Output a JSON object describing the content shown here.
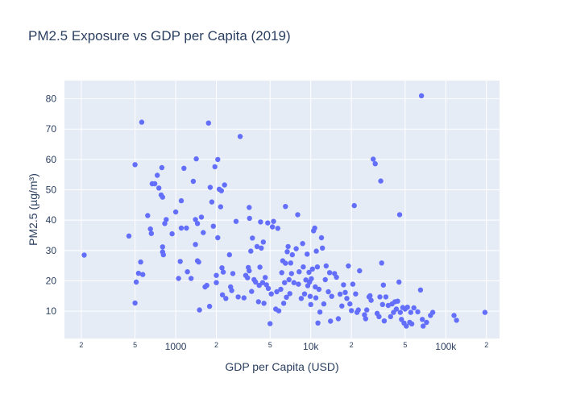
{
  "chart_data": {
    "type": "scatter",
    "title": "PM2.5 Exposure vs GDP per Capita (2019)",
    "xlabel": "GDP per Capita (USD)",
    "ylabel": "PM2.5 (µg/m³)",
    "x_scale": "log",
    "x_range": [
      150,
      250000
    ],
    "y_range": [
      1,
      86
    ],
    "x_ticks": [
      {
        "value": 200,
        "label": "2",
        "minor": true
      },
      {
        "value": 500,
        "label": "5",
        "minor": true
      },
      {
        "value": 1000,
        "label": "1000",
        "minor": false
      },
      {
        "value": 2000,
        "label": "2",
        "minor": true
      },
      {
        "value": 5000,
        "label": "5",
        "minor": true
      },
      {
        "value": 10000,
        "label": "10k",
        "minor": false
      },
      {
        "value": 20000,
        "label": "2",
        "minor": true
      },
      {
        "value": 50000,
        "label": "5",
        "minor": true
      },
      {
        "value": 100000,
        "label": "100k",
        "minor": false
      },
      {
        "value": 200000,
        "label": "2",
        "minor": true
      }
    ],
    "y_ticks": [
      10,
      20,
      30,
      40,
      50,
      60,
      70,
      80
    ],
    "grid": true,
    "marker_color": "#636efa",
    "plot_background": "#e5ecf6",
    "points": [
      [
        210,
        28.5
      ],
      [
        450,
        34.8
      ],
      [
        500,
        58.3
      ],
      [
        500,
        12.7
      ],
      [
        510,
        19.6
      ],
      [
        530,
        22.5
      ],
      [
        550,
        26.2
      ],
      [
        560,
        72.3
      ],
      [
        570,
        22.1
      ],
      [
        620,
        41.5
      ],
      [
        650,
        37.1
      ],
      [
        660,
        35.6
      ],
      [
        670,
        52.0
      ],
      [
        700,
        52.0
      ],
      [
        730,
        54.8
      ],
      [
        750,
        50.6
      ],
      [
        780,
        48.3
      ],
      [
        790,
        57.3
      ],
      [
        800,
        47.6
      ],
      [
        800,
        31.2
      ],
      [
        800,
        29.5
      ],
      [
        810,
        28.6
      ],
      [
        830,
        38.9
      ],
      [
        850,
        40.2
      ],
      [
        940,
        35.5
      ],
      [
        1000,
        42.7
      ],
      [
        1050,
        20.8
      ],
      [
        1080,
        26.4
      ],
      [
        1100,
        37.4
      ],
      [
        1100,
        46.4
      ],
      [
        1150,
        57.1
      ],
      [
        1200,
        37.4
      ],
      [
        1220,
        23.0
      ],
      [
        1300,
        20.8
      ],
      [
        1350,
        52.8
      ],
      [
        1400,
        40.2
      ],
      [
        1400,
        32.0
      ],
      [
        1420,
        60.2
      ],
      [
        1450,
        26.6
      ],
      [
        1450,
        38.9
      ],
      [
        1480,
        26.2
      ],
      [
        1500,
        10.4
      ],
      [
        1550,
        41.0
      ],
      [
        1600,
        35.9
      ],
      [
        1650,
        18.0
      ],
      [
        1700,
        18.5
      ],
      [
        1750,
        72.0
      ],
      [
        1780,
        11.6
      ],
      [
        1800,
        50.8
      ],
      [
        1850,
        46.0
      ],
      [
        1900,
        38.0
      ],
      [
        1950,
        57.6
      ],
      [
        2000,
        21.8
      ],
      [
        2000,
        19.4
      ],
      [
        2050,
        60.0
      ],
      [
        2050,
        34.2
      ],
      [
        2100,
        50.2
      ],
      [
        2150,
        44.4
      ],
      [
        2180,
        49.7
      ],
      [
        2200,
        24.3
      ],
      [
        2220,
        15.4
      ],
      [
        2250,
        22.9
      ],
      [
        2300,
        51.6
      ],
      [
        2350,
        14.2
      ],
      [
        2500,
        28.6
      ],
      [
        2550,
        18.0
      ],
      [
        2600,
        16.8
      ],
      [
        2650,
        22.4
      ],
      [
        2800,
        39.6
      ],
      [
        2900,
        14.7
      ],
      [
        3000,
        67.6
      ],
      [
        3200,
        14.4
      ],
      [
        3300,
        21.8
      ],
      [
        3400,
        21.0
      ],
      [
        3450,
        24.4
      ],
      [
        3500,
        23.3
      ],
      [
        3500,
        44.2
      ],
      [
        3520,
        40.6
      ],
      [
        3600,
        29.8
      ],
      [
        3650,
        16.5
      ],
      [
        3700,
        34.1
      ],
      [
        3800,
        20.4
      ],
      [
        3900,
        19.6
      ],
      [
        4000,
        31.3
      ],
      [
        4100,
        13.1
      ],
      [
        4150,
        18.5
      ],
      [
        4200,
        24.5
      ],
      [
        4250,
        39.4
      ],
      [
        4300,
        30.8
      ],
      [
        4400,
        19.4
      ],
      [
        4450,
        32.8
      ],
      [
        4500,
        12.6
      ],
      [
        4600,
        21.1
      ],
      [
        4700,
        18.7
      ],
      [
        4800,
        39.1
      ],
      [
        4850,
        17.5
      ],
      [
        5000,
        5.9
      ],
      [
        5100,
        15.7
      ],
      [
        5200,
        37.8
      ],
      [
        5300,
        39.6
      ],
      [
        5500,
        10.7
      ],
      [
        5600,
        16.4
      ],
      [
        5700,
        37.3
      ],
      [
        5800,
        10.1
      ],
      [
        6000,
        17.2
      ],
      [
        6100,
        22.7
      ],
      [
        6200,
        26.6
      ],
      [
        6300,
        12.6
      ],
      [
        6400,
        19.4
      ],
      [
        6500,
        25.8
      ],
      [
        6500,
        44.5
      ],
      [
        6600,
        14.6
      ],
      [
        6700,
        29.6
      ],
      [
        6800,
        31.3
      ],
      [
        6900,
        20.4
      ],
      [
        7000,
        15.8
      ],
      [
        7100,
        25.9
      ],
      [
        7200,
        22.4
      ],
      [
        7300,
        28.6
      ],
      [
        7500,
        19.4
      ],
      [
        7800,
        30.6
      ],
      [
        8000,
        41.8
      ],
      [
        8100,
        18.9
      ],
      [
        8200,
        23.0
      ],
      [
        8500,
        14.2
      ],
      [
        8700,
        32.3
      ],
      [
        8800,
        24.6
      ],
      [
        9000,
        15.7
      ],
      [
        9200,
        20.3
      ],
      [
        9400,
        28.8
      ],
      [
        9500,
        18.4
      ],
      [
        9700,
        22.8
      ],
      [
        9800,
        19.6
      ],
      [
        9900,
        14.9
      ],
      [
        10000,
        12.2
      ],
      [
        10100,
        20.7
      ],
      [
        10300,
        23.9
      ],
      [
        10500,
        36.5
      ],
      [
        10700,
        37.4
      ],
      [
        10800,
        18.0
      ],
      [
        10900,
        14.4
      ],
      [
        11000,
        29.8
      ],
      [
        11200,
        24.6
      ],
      [
        11300,
        6.1
      ],
      [
        11500,
        17.2
      ],
      [
        11700,
        9.7
      ],
      [
        12000,
        34.2
      ],
      [
        12200,
        30.8
      ],
      [
        12500,
        12.4
      ],
      [
        12800,
        20.4
      ],
      [
        13000,
        24.9
      ],
      [
        13500,
        16.4
      ],
      [
        13800,
        22.7
      ],
      [
        14000,
        6.7
      ],
      [
        14300,
        14.9
      ],
      [
        15000,
        22.4
      ],
      [
        15500,
        21.2
      ],
      [
        16000,
        7.5
      ],
      [
        16500,
        15.6
      ],
      [
        17000,
        11.7
      ],
      [
        17500,
        18.7
      ],
      [
        18000,
        16.2
      ],
      [
        18500,
        14.2
      ],
      [
        19000,
        24.9
      ],
      [
        19500,
        12.4
      ],
      [
        20000,
        10.2
      ],
      [
        20500,
        18.9
      ],
      [
        21000,
        44.8
      ],
      [
        21500,
        15.7
      ],
      [
        22000,
        9.6
      ],
      [
        22500,
        10.4
      ],
      [
        23000,
        23.3
      ],
      [
        25000,
        8.8
      ],
      [
        25500,
        7.5
      ],
      [
        26000,
        10.4
      ],
      [
        27000,
        14.7
      ],
      [
        27500,
        15.1
      ],
      [
        28000,
        13.6
      ],
      [
        29000,
        60.1
      ],
      [
        30000,
        58.6
      ],
      [
        31000,
        9.3
      ],
      [
        32000,
        8.2
      ],
      [
        32500,
        14.7
      ],
      [
        33000,
        52.9
      ],
      [
        33500,
        25.9
      ],
      [
        34000,
        12.2
      ],
      [
        34500,
        18.6
      ],
      [
        35000,
        6.8
      ],
      [
        36000,
        14.7
      ],
      [
        37500,
        11.9
      ],
      [
        39000,
        8.2
      ],
      [
        40000,
        12.4
      ],
      [
        41000,
        9.6
      ],
      [
        42000,
        13.1
      ],
      [
        43000,
        10.7
      ],
      [
        44000,
        13.3
      ],
      [
        45000,
        19.6
      ],
      [
        45500,
        41.8
      ],
      [
        46000,
        9.6
      ],
      [
        47000,
        7.3
      ],
      [
        48000,
        11.2
      ],
      [
        49000,
        6.1
      ],
      [
        50000,
        10.7
      ],
      [
        51000,
        5.1
      ],
      [
        52000,
        11.3
      ],
      [
        54000,
        6.3
      ],
      [
        55000,
        9.6
      ],
      [
        56000,
        5.8
      ],
      [
        58000,
        11.1
      ],
      [
        62000,
        9.8
      ],
      [
        65000,
        17.0
      ],
      [
        66000,
        81.0
      ],
      [
        67000,
        7.3
      ],
      [
        68000,
        5.1
      ],
      [
        72000,
        6.3
      ],
      [
        77000,
        8.6
      ],
      [
        80000,
        9.6
      ],
      [
        115000,
        8.6
      ],
      [
        120000,
        7.0
      ],
      [
        195000,
        9.6
      ]
    ]
  }
}
